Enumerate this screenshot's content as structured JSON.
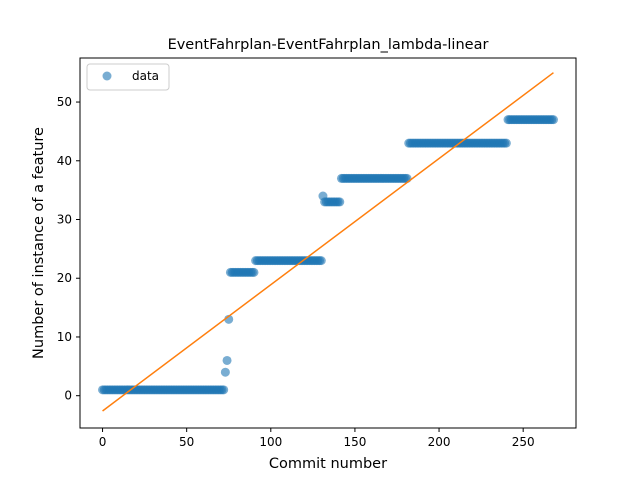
{
  "chart_data": {
    "type": "scatter",
    "title": "EventFahrplan-EventFahrplan_lambda-linear",
    "xlabel": "Commit number",
    "ylabel": "Number of instance of a feature",
    "xlim": [
      -13.4,
      281.4
    ],
    "ylim": [
      -5.5,
      57.5
    ],
    "xticks": [
      0,
      50,
      100,
      150,
      200,
      250
    ],
    "yticks": [
      0,
      10,
      20,
      30,
      40,
      50
    ],
    "grid": false,
    "legend": {
      "placement": "upper-left",
      "entries": [
        "data"
      ]
    },
    "colors": {
      "scatter": "#1f77b4",
      "fit_line": "#ff7f0e"
    },
    "series": [
      {
        "name": "data",
        "kind": "scatter",
        "runs": [
          {
            "x_start": 0,
            "x_end": 72,
            "y": 1
          },
          {
            "x": 73,
            "y": 4
          },
          {
            "x": 74,
            "y": 6
          },
          {
            "x": 75,
            "y": 13
          },
          {
            "x_start": 76,
            "x_end": 90,
            "y": 21
          },
          {
            "x_start": 91,
            "x_end": 130,
            "y": 23
          },
          {
            "x": 131,
            "y": 34
          },
          {
            "x_start": 132,
            "x_end": 141,
            "y": 33
          },
          {
            "x_start": 142,
            "x_end": 181,
            "y": 37
          },
          {
            "x_start": 182,
            "x_end": 240,
            "y": 43
          },
          {
            "x_start": 241,
            "x_end": 268,
            "y": 47
          }
        ]
      },
      {
        "kind": "line",
        "x": [
          0,
          268
        ],
        "y": [
          -2.6,
          55.0
        ]
      }
    ]
  }
}
